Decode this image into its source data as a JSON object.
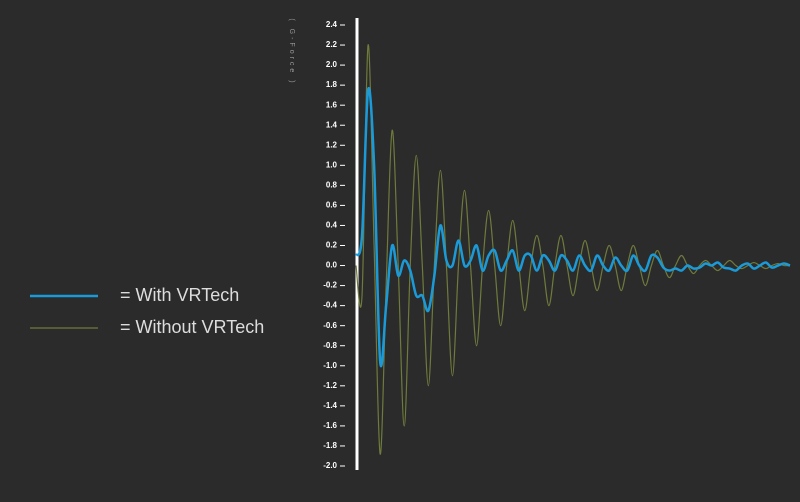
{
  "chart_data": {
    "type": "line",
    "y_label": "( G-Force )",
    "ylim": [
      -2,
      2.4
    ],
    "yticks": [
      2.4,
      2.2,
      {
        "value": 2,
        "label": "2.0"
      },
      1.8,
      1.6,
      1.4,
      1.2,
      {
        "value": 1,
        "label": "1.0"
      },
      0.8,
      0.6,
      0.4,
      0.2,
      {
        "value": 0,
        "label": "0.0"
      },
      -0.2,
      -0.4,
      -0.6,
      -0.8,
      {
        "value": -1,
        "label": "-1.0"
      },
      -1.2,
      -1.4,
      -1.6,
      -1.8,
      {
        "value": -2,
        "label": "-2.0"
      }
    ],
    "series": [
      {
        "name": "= With VRTech",
        "color": "#1b9ad8",
        "values": [
          0.1,
          0.3,
          1.75,
          1.0,
          -0.95,
          -0.4,
          0.2,
          -0.1,
          0.05,
          -0.05,
          -0.3,
          -0.3,
          -0.45,
          -0.1,
          0.4,
          0.05,
          0.0,
          0.25,
          0.0,
          0.05,
          0.2,
          -0.05,
          0.1,
          0.15,
          -0.05,
          0.05,
          0.15,
          -0.05,
          0.1,
          0.1,
          -0.05,
          0.1,
          0.05,
          -0.05,
          0.1,
          0.05,
          -0.05,
          0.1,
          0.0,
          -0.05,
          0.1,
          0.0,
          -0.05,
          0.08,
          0.0,
          -0.05,
          0.1,
          0.0,
          -0.05,
          0.1,
          0.08,
          -0.02,
          -0.05,
          -0.03,
          -0.05,
          0.0,
          -0.03,
          -0.02,
          0.02,
          0.0,
          0.03,
          -0.02,
          -0.03,
          -0.05,
          0.0,
          0.02,
          -0.03,
          0.0,
          0.03,
          -0.02,
          0.0,
          0.02,
          0.0
        ]
      },
      {
        "name": "= Without VRTech",
        "color": "#6e7b3c",
        "values": [
          0.0,
          -0.3,
          2.2,
          0.2,
          -1.88,
          -0.2,
          1.35,
          0.0,
          -1.6,
          0.0,
          1.1,
          0.0,
          -1.2,
          0.0,
          0.95,
          0.0,
          -1.1,
          0.0,
          0.75,
          0.0,
          -0.8,
          0.0,
          0.55,
          0.0,
          -0.6,
          0.0,
          0.45,
          0.0,
          -0.45,
          0.0,
          0.3,
          0.0,
          -0.4,
          0.0,
          0.3,
          0.0,
          -0.3,
          0.0,
          0.25,
          0.0,
          -0.25,
          0.0,
          0.2,
          0.0,
          -0.25,
          0.0,
          0.2,
          0.0,
          -0.2,
          0.0,
          0.15,
          0.0,
          -0.12,
          0.0,
          0.1,
          0.0,
          -0.08,
          0.0,
          0.05,
          0.0,
          -0.05,
          0.0,
          0.05,
          0.0,
          -0.03,
          0.0,
          0.03,
          0.0,
          -0.03,
          0.0,
          0.02,
          0.0,
          0.0
        ]
      }
    ]
  }
}
